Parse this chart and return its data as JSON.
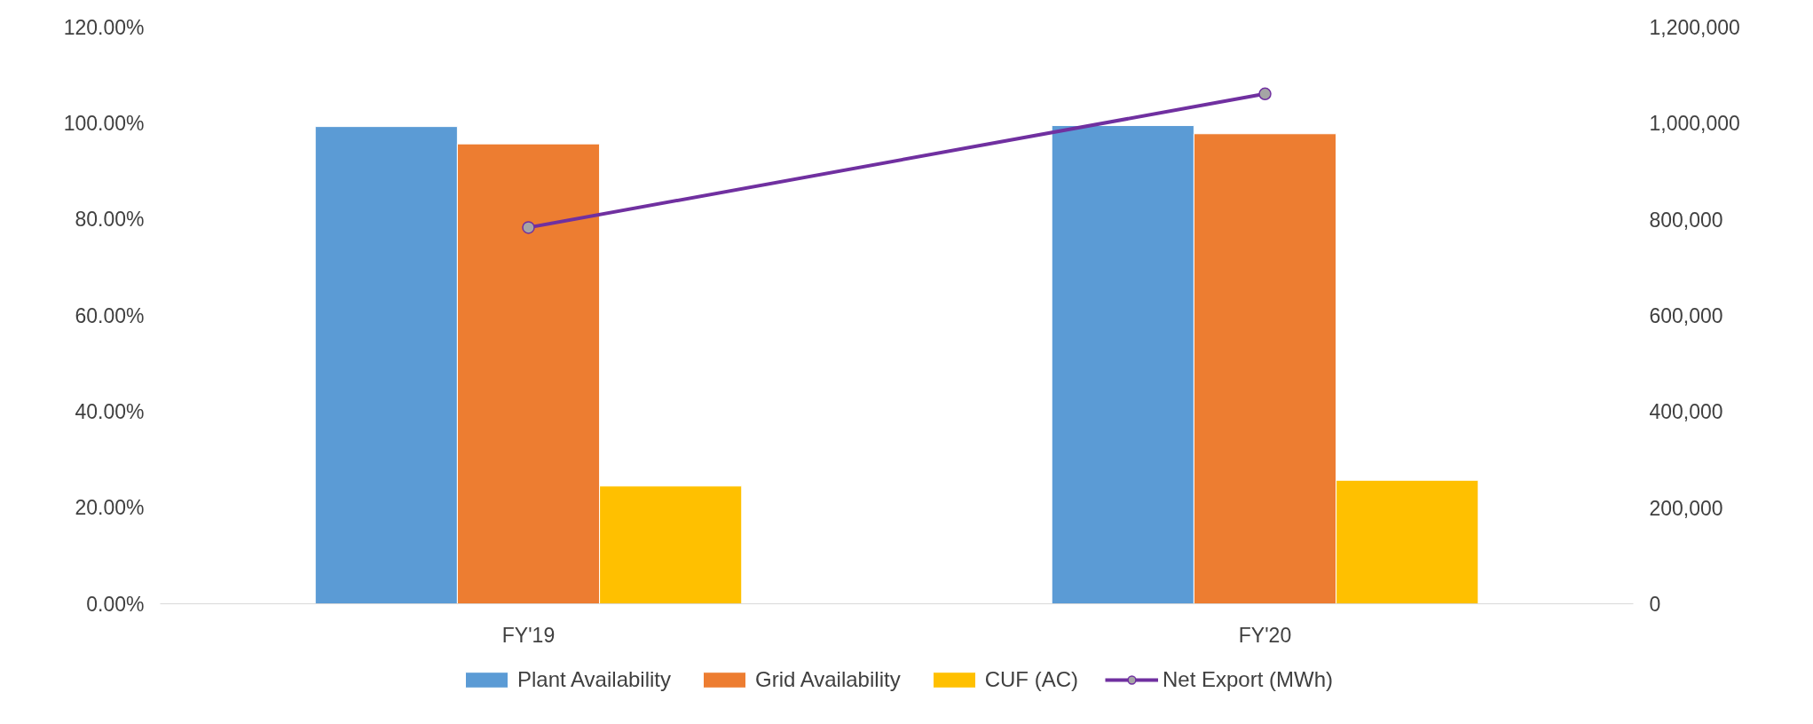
{
  "chart_data": {
    "type": "bar",
    "categories": [
      "FY'19",
      "FY'20"
    ],
    "series": [
      {
        "name": "Plant Availability",
        "color": "#5b9bd5",
        "values": [
          99.3,
          99.5
        ]
      },
      {
        "name": "Grid Availability",
        "color": "#ed7d31",
        "values": [
          95.7,
          97.8
        ]
      },
      {
        "name": "CUF (AC)",
        "color": "#ffc000",
        "values": [
          24.5,
          25.7
        ]
      },
      {
        "name": "Net Export (MWh)",
        "color": "#7030a0",
        "type": "line",
        "axis": "y2",
        "marker": "circle",
        "values": [
          783000,
          1061000
        ]
      }
    ],
    "ylim": [
      0,
      120
    ],
    "yticks": [
      {
        "value": 0,
        "label": "0.00%"
      },
      {
        "value": 20,
        "label": "20.00%"
      },
      {
        "value": 40,
        "label": "40.00%"
      },
      {
        "value": 60,
        "label": "60.00%"
      },
      {
        "value": 80,
        "label": "80.00%"
      },
      {
        "value": 100,
        "label": "100.00%"
      },
      {
        "value": 120,
        "label": "120.00%"
      }
    ],
    "y2lim": [
      0,
      1200000
    ],
    "y2ticks": [
      {
        "value": 0,
        "label": "0"
      },
      {
        "value": 200000,
        "label": "200,000"
      },
      {
        "value": 400000,
        "label": "400,000"
      },
      {
        "value": 600000,
        "label": "600,000"
      },
      {
        "value": 800000,
        "label": "800,000"
      },
      {
        "value": 1000000,
        "label": "1,000,000"
      },
      {
        "value": 1200000,
        "label": "1,200,000"
      }
    ],
    "grid": false,
    "legend": "bottom"
  }
}
